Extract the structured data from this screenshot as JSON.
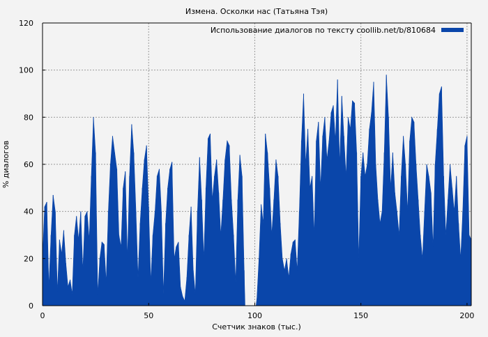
{
  "chart_data": {
    "type": "area",
    "title": "Измена. Осколки нас (Татьяна Тэя)",
    "xlabel": "Счетчик знаков (тыс.)",
    "ylabel": "% диалогов",
    "xlim": [
      0,
      202
    ],
    "ylim": [
      0,
      120
    ],
    "xticks": [
      0,
      50,
      100,
      150,
      200
    ],
    "yticks": [
      0,
      20,
      40,
      60,
      80,
      100,
      120
    ],
    "grid": true,
    "legend_position": "top-right",
    "color": "#0a46aa",
    "series": [
      {
        "name": "Использование диалогов по тексту coollib.net/b/810684",
        "points": [
          [
            0,
            20
          ],
          [
            1,
            42
          ],
          [
            2,
            44
          ],
          [
            3,
            8
          ],
          [
            4,
            30
          ],
          [
            5,
            47
          ],
          [
            6,
            40
          ],
          [
            7,
            6
          ],
          [
            8,
            28
          ],
          [
            9,
            22
          ],
          [
            10,
            32
          ],
          [
            11,
            18
          ],
          [
            12,
            8
          ],
          [
            13,
            11
          ],
          [
            14,
            5
          ],
          [
            15,
            30
          ],
          [
            16,
            38
          ],
          [
            17,
            28
          ],
          [
            18,
            40
          ],
          [
            19,
            15
          ],
          [
            20,
            38
          ],
          [
            21,
            40
          ],
          [
            22,
            28
          ],
          [
            23,
            55
          ],
          [
            24,
            80
          ],
          [
            25,
            65
          ],
          [
            26,
            5
          ],
          [
            27,
            20
          ],
          [
            28,
            27
          ],
          [
            29,
            26
          ],
          [
            30,
            10
          ],
          [
            31,
            40
          ],
          [
            32,
            60
          ],
          [
            33,
            72
          ],
          [
            34,
            65
          ],
          [
            35,
            58
          ],
          [
            36,
            30
          ],
          [
            37,
            25
          ],
          [
            38,
            50
          ],
          [
            39,
            57
          ],
          [
            40,
            20
          ],
          [
            41,
            55
          ],
          [
            42,
            77
          ],
          [
            43,
            65
          ],
          [
            44,
            40
          ],
          [
            45,
            12
          ],
          [
            46,
            35
          ],
          [
            47,
            50
          ],
          [
            48,
            62
          ],
          [
            49,
            68
          ],
          [
            50,
            42
          ],
          [
            51,
            10
          ],
          [
            52,
            30
          ],
          [
            53,
            40
          ],
          [
            54,
            55
          ],
          [
            55,
            58
          ],
          [
            56,
            40
          ],
          [
            57,
            5
          ],
          [
            58,
            35
          ],
          [
            59,
            50
          ],
          [
            60,
            58
          ],
          [
            61,
            61
          ],
          [
            62,
            20
          ],
          [
            63,
            25
          ],
          [
            64,
            27
          ],
          [
            65,
            8
          ],
          [
            66,
            4
          ],
          [
            67,
            2
          ],
          [
            68,
            12
          ],
          [
            69,
            30
          ],
          [
            70,
            42
          ],
          [
            71,
            15
          ],
          [
            72,
            5
          ],
          [
            73,
            40
          ],
          [
            74,
            63
          ],
          [
            75,
            45
          ],
          [
            76,
            20
          ],
          [
            77,
            50
          ],
          [
            78,
            71
          ],
          [
            79,
            73
          ],
          [
            80,
            45
          ],
          [
            81,
            55
          ],
          [
            82,
            62
          ],
          [
            83,
            48
          ],
          [
            84,
            30
          ],
          [
            85,
            45
          ],
          [
            86,
            62
          ],
          [
            87,
            70
          ],
          [
            88,
            68
          ],
          [
            89,
            45
          ],
          [
            90,
            30
          ],
          [
            91,
            10
          ],
          [
            92,
            45
          ],
          [
            93,
            64
          ],
          [
            94,
            55
          ],
          [
            95,
            15
          ],
          [
            95.4,
            0
          ],
          [
            100.6,
            0
          ],
          [
            101,
            3
          ],
          [
            102,
            20
          ],
          [
            103,
            43
          ],
          [
            104,
            35
          ],
          [
            105,
            73
          ],
          [
            106,
            65
          ],
          [
            107,
            50
          ],
          [
            108,
            30
          ],
          [
            109,
            45
          ],
          [
            110,
            62
          ],
          [
            111,
            55
          ],
          [
            112,
            35
          ],
          [
            113,
            20
          ],
          [
            114,
            15
          ],
          [
            115,
            20
          ],
          [
            116,
            12
          ],
          [
            117,
            22
          ],
          [
            118,
            27
          ],
          [
            119,
            28
          ],
          [
            120,
            15
          ],
          [
            121,
            40
          ],
          [
            122,
            70
          ],
          [
            123,
            90
          ],
          [
            124,
            60
          ],
          [
            125,
            75
          ],
          [
            126,
            50
          ],
          [
            127,
            55
          ],
          [
            128,
            30
          ],
          [
            129,
            70
          ],
          [
            130,
            78
          ],
          [
            131,
            50
          ],
          [
            132,
            72
          ],
          [
            133,
            80
          ],
          [
            134,
            62
          ],
          [
            135,
            70
          ],
          [
            136,
            82
          ],
          [
            137,
            85
          ],
          [
            138,
            70
          ],
          [
            139,
            96
          ],
          [
            140,
            60
          ],
          [
            141,
            89
          ],
          [
            142,
            72
          ],
          [
            143,
            55
          ],
          [
            144,
            80
          ],
          [
            145,
            75
          ],
          [
            146,
            87
          ],
          [
            147,
            86
          ],
          [
            148,
            65
          ],
          [
            149,
            20
          ],
          [
            150,
            55
          ],
          [
            151,
            65
          ],
          [
            152,
            55
          ],
          [
            153,
            60
          ],
          [
            154,
            75
          ],
          [
            155,
            82
          ],
          [
            156,
            95
          ],
          [
            157,
            60
          ],
          [
            158,
            45
          ],
          [
            159,
            35
          ],
          [
            160,
            40
          ],
          [
            161,
            65
          ],
          [
            162,
            98
          ],
          [
            163,
            80
          ],
          [
            164,
            50
          ],
          [
            165,
            65
          ],
          [
            166,
            48
          ],
          [
            167,
            40
          ],
          [
            168,
            30
          ],
          [
            169,
            55
          ],
          [
            170,
            72
          ],
          [
            171,
            60
          ],
          [
            172,
            40
          ],
          [
            173,
            70
          ],
          [
            174,
            80
          ],
          [
            175,
            78
          ],
          [
            176,
            60
          ],
          [
            177,
            45
          ],
          [
            178,
            30
          ],
          [
            179,
            20
          ],
          [
            180,
            40
          ],
          [
            181,
            60
          ],
          [
            182,
            55
          ],
          [
            183,
            48
          ],
          [
            184,
            25
          ],
          [
            185,
            60
          ],
          [
            186,
            75
          ],
          [
            187,
            90
          ],
          [
            188,
            93
          ],
          [
            189,
            55
          ],
          [
            190,
            30
          ],
          [
            191,
            45
          ],
          [
            192,
            60
          ],
          [
            193,
            50
          ],
          [
            194,
            40
          ],
          [
            195,
            55
          ],
          [
            196,
            35
          ],
          [
            197,
            20
          ],
          [
            198,
            40
          ],
          [
            199,
            68
          ],
          [
            200,
            72
          ],
          [
            201,
            30
          ],
          [
            202,
            28
          ]
        ]
      }
    ]
  }
}
